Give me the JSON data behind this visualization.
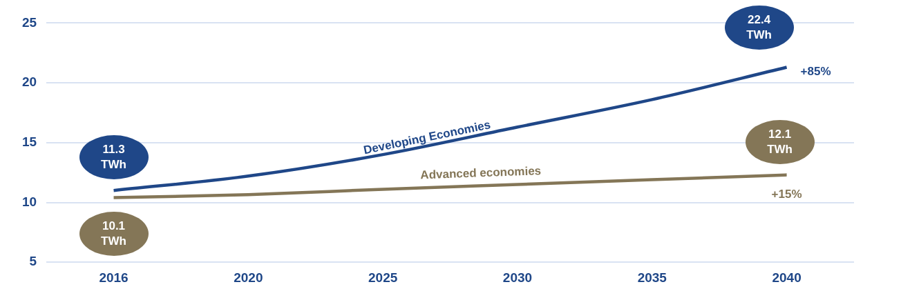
{
  "chart_data": {
    "type": "line",
    "categories": [
      "2016",
      "2020",
      "2025",
      "2030",
      "2035",
      "2040"
    ],
    "series": [
      {
        "name": "Developing Economies",
        "color": "#1f4788",
        "values": [
          11.0,
          12.2,
          14.0,
          16.3,
          18.6,
          21.3
        ]
      },
      {
        "name": "Advanced economies",
        "color": "#847657",
        "values": [
          10.4,
          10.65,
          11.1,
          11.5,
          11.9,
          12.3
        ]
      }
    ],
    "ylim": [
      5,
      25
    ],
    "yticks": [
      5,
      10,
      15,
      20,
      25
    ],
    "grid": "y",
    "legend": false,
    "marker": "none",
    "line_style": "solid",
    "annotations": [
      "11.3\nTWh",
      "10.1\nTWh",
      "22.4\nTWh",
      "+85%",
      "12.1\nTWh",
      "+15%"
    ]
  }
}
